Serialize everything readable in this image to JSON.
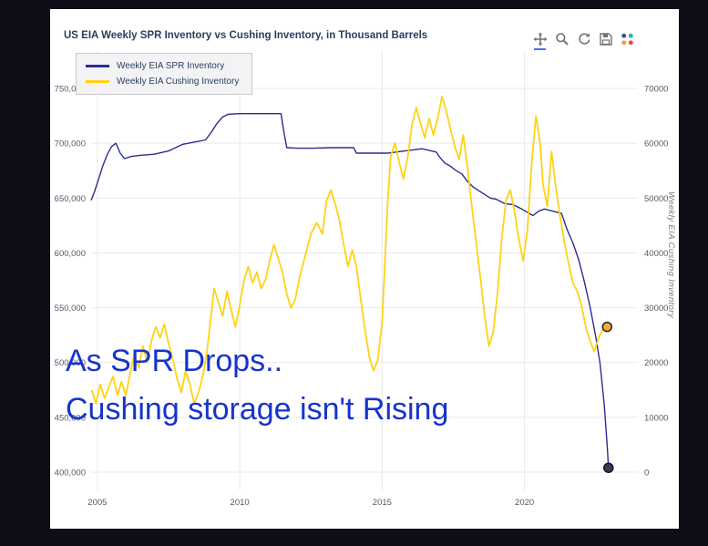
{
  "chart": {
    "title": "US EIA Weekly SPR Inventory vs Cushing Inventory, in Thousand Barrels",
    "annotation_line1": "As SPR Drops..",
    "annotation_line2": "Cushing storage isn't Rising",
    "annotation_color": "#1733cc",
    "right_axis_title": "Weekly EIA Cushing Inventory"
  },
  "modebar": {
    "icons": [
      "pan-icon",
      "zoom-icon",
      "reset-axes-icon",
      "download-plot-icon",
      "plotly-logo-icon"
    ],
    "active_button": "pan",
    "icon_color": "#6f6f78",
    "active_indicator_color": "#4a6bfa"
  },
  "chart_data": {
    "type": "line",
    "title": "US EIA Weekly SPR Inventory vs Cushing Inventory, in Thousand Barrels",
    "grid": true,
    "legend_position": "top-left",
    "x_axis": {
      "range": [
        2004.78,
        2023.98
      ],
      "tick_values": [
        2005,
        2010,
        2015,
        2020
      ],
      "tick_labels": [
        "2005",
        "2010",
        "2015",
        "2020"
      ]
    },
    "left_y_axis": {
      "range": [
        400000,
        750000
      ],
      "tick_values": [
        400000,
        450000,
        500000,
        550000,
        600000,
        650000,
        700000,
        750000
      ],
      "tick_labels": [
        "400,000",
        "450,000",
        "500,000",
        "550,000",
        "600,000",
        "650,000",
        "700,000",
        "750,000"
      ]
    },
    "right_y_axis": {
      "title": "Weekly EIA Cushing Inventory",
      "range": [
        0,
        70000
      ],
      "tick_values": [
        0,
        10000,
        20000,
        30000,
        40000,
        50000,
        60000,
        70000
      ],
      "tick_labels": [
        "0",
        "10000",
        "20000",
        "30000",
        "40000",
        "50000",
        "60000",
        "70000"
      ]
    },
    "series": [
      {
        "name": "Weekly EIA SPR Inventory",
        "axis": "left",
        "color": "#2d2d91",
        "line_width": 1.4,
        "end_marker": {
          "fill": "#3a3a52",
          "stroke": "#14141f"
        },
        "x": [
          2004.78,
          2004.9,
          2005.0,
          2005.1,
          2005.2,
          2005.35,
          2005.5,
          2005.65,
          2005.8,
          2005.95,
          2006.2,
          2006.5,
          2007.0,
          2007.5,
          2008.0,
          2008.4,
          2008.8,
          2009.0,
          2009.2,
          2009.4,
          2009.6,
          2010.0,
          2010.6,
          2011.2,
          2011.45,
          2011.55,
          2011.65,
          2012.0,
          2012.6,
          2013.2,
          2013.8,
          2014.0,
          2014.1,
          2014.6,
          2015.2,
          2015.8,
          2016.4,
          2016.9,
          2017.0,
          2017.2,
          2017.4,
          2017.6,
          2017.8,
          2018.0,
          2018.2,
          2018.5,
          2018.8,
          2019.0,
          2019.3,
          2019.6,
          2019.9,
          2020.1,
          2020.3,
          2020.5,
          2020.7,
          2021.0,
          2021.3,
          2021.5,
          2021.7,
          2021.9,
          2022.1,
          2022.3,
          2022.5,
          2022.65,
          2022.8,
          2022.9,
          2022.95
        ],
        "y": [
          648000,
          656000,
          664000,
          672000,
          680000,
          690000,
          697000,
          700000,
          691000,
          686000,
          688000,
          689000,
          690000,
          693000,
          699000,
          701000,
          703000,
          710000,
          718000,
          724000,
          726500,
          727000,
          727000,
          727000,
          727000,
          710000,
          696000,
          695500,
          695500,
          696000,
          696000,
          696000,
          691000,
          691000,
          691000,
          693000,
          695000,
          692000,
          688000,
          682000,
          679000,
          675000,
          672000,
          665000,
          660000,
          655000,
          650000,
          649000,
          645000,
          644000,
          640000,
          637000,
          634000,
          638000,
          640000,
          638000,
          636000,
          621000,
          609000,
          594000,
          574000,
          551000,
          524000,
          500000,
          462000,
          425000,
          404000
        ]
      },
      {
        "name": "Weekly EIA Cushing Inventory",
        "axis": "right",
        "color": "#ffd215",
        "line_width": 1.8,
        "end_marker": {
          "fill": "#f2a93b",
          "stroke": "#222222"
        },
        "x": [
          2004.8,
          2004.95,
          2005.1,
          2005.25,
          2005.4,
          2005.55,
          2005.7,
          2005.85,
          2006.0,
          2006.15,
          2006.3,
          2006.45,
          2006.6,
          2006.75,
          2006.9,
          2007.05,
          2007.2,
          2007.35,
          2007.5,
          2007.65,
          2007.8,
          2007.95,
          2008.1,
          2008.25,
          2008.4,
          2008.55,
          2008.7,
          2008.85,
          2009.0,
          2009.1,
          2009.25,
          2009.4,
          2009.55,
          2009.7,
          2009.85,
          2010.0,
          2010.15,
          2010.3,
          2010.45,
          2010.6,
          2010.75,
          2010.9,
          2011.05,
          2011.2,
          2011.35,
          2011.5,
          2011.65,
          2011.8,
          2011.95,
          2012.1,
          2012.3,
          2012.5,
          2012.7,
          2012.9,
          2013.05,
          2013.2,
          2013.35,
          2013.5,
          2013.65,
          2013.8,
          2013.95,
          2014.1,
          2014.25,
          2014.4,
          2014.55,
          2014.7,
          2014.85,
          2015.0,
          2015.1,
          2015.2,
          2015.3,
          2015.45,
          2015.6,
          2015.75,
          2015.9,
          2016.05,
          2016.2,
          2016.35,
          2016.5,
          2016.65,
          2016.8,
          2016.95,
          2017.1,
          2017.25,
          2017.4,
          2017.55,
          2017.7,
          2017.85,
          2018.0,
          2018.15,
          2018.3,
          2018.45,
          2018.6,
          2018.75,
          2018.9,
          2019.05,
          2019.2,
          2019.35,
          2019.5,
          2019.65,
          2019.8,
          2019.95,
          2020.1,
          2020.25,
          2020.4,
          2020.55,
          2020.65,
          2020.8,
          2020.95,
          2021.1,
          2021.25,
          2021.4,
          2021.55,
          2021.7,
          2021.85,
          2022.0,
          2022.15,
          2022.3,
          2022.45,
          2022.6,
          2022.75,
          2022.9
        ],
        "y": [
          15000,
          12500,
          16000,
          13500,
          15500,
          17500,
          14000,
          16500,
          14000,
          18000,
          21500,
          19000,
          23000,
          20000,
          24000,
          26500,
          24500,
          27000,
          23500,
          20500,
          17000,
          14500,
          18500,
          16000,
          12500,
          14500,
          17500,
          22000,
          29000,
          33500,
          31000,
          28500,
          33000,
          29500,
          26500,
          30500,
          35000,
          37500,
          34500,
          36500,
          33500,
          35000,
          38500,
          41500,
          39000,
          36500,
          32500,
          30000,
          31500,
          35500,
          39500,
          43500,
          45500,
          43500,
          49500,
          51500,
          49000,
          46000,
          41500,
          37500,
          40500,
          37500,
          31500,
          26000,
          21000,
          18500,
          20500,
          27500,
          38500,
          49500,
          57500,
          60000,
          56500,
          53500,
          57500,
          63500,
          66500,
          63500,
          61000,
          64500,
          61500,
          64500,
          68500,
          66000,
          62500,
          59500,
          57000,
          61500,
          55500,
          48500,
          42000,
          35500,
          28500,
          23000,
          25500,
          32500,
          42500,
          49500,
          51500,
          47500,
          42500,
          38500,
          44000,
          56000,
          65000,
          60000,
          52500,
          48500,
          58500,
          52000,
          46500,
          42000,
          38000,
          34500,
          33000,
          30500,
          26500,
          24000,
          22000,
          24500,
          26000,
          26500
        ]
      }
    ]
  }
}
